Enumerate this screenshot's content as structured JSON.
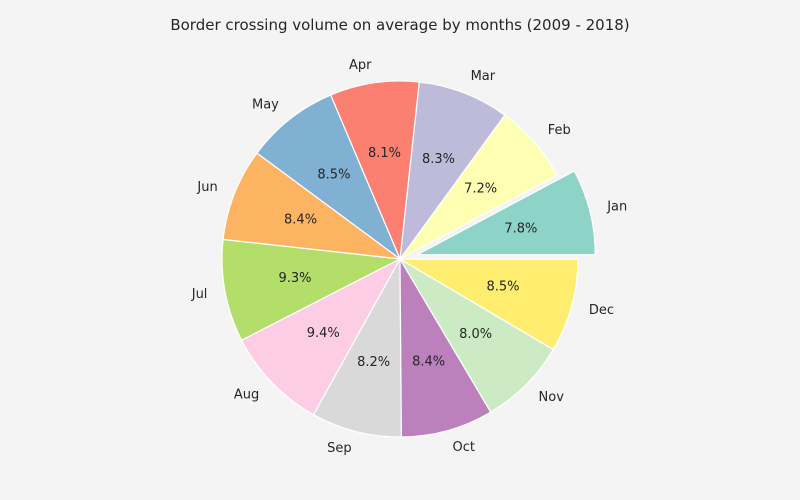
{
  "chart_data": {
    "type": "pie",
    "title": "Border crossing volume on average by months (2009 - 2018)",
    "categories": [
      "Jan",
      "Feb",
      "Mar",
      "Apr",
      "May",
      "Jun",
      "Jul",
      "Aug",
      "Sep",
      "Oct",
      "Nov",
      "Dec"
    ],
    "values": [
      7.8,
      7.2,
      8.3,
      8.1,
      8.5,
      8.4,
      9.3,
      9.4,
      8.2,
      8.4,
      8.0,
      8.5
    ],
    "value_labels": [
      "7.8%",
      "7.2%",
      "8.3%",
      "8.1%",
      "8.5%",
      "8.4%",
      "9.3%",
      "9.4%",
      "8.2%",
      "8.4%",
      "8.0%",
      "8.5%"
    ],
    "colors": [
      "#8dd3c7",
      "#ffffb3",
      "#bebada",
      "#fb8072",
      "#80b1d3",
      "#fdb462",
      "#b3de69",
      "#fccde5",
      "#d9d9d9",
      "#bc80bd",
      "#ccebc5",
      "#ffed6f"
    ],
    "explode": [
      0.1,
      0,
      0,
      0,
      0,
      0,
      0,
      0,
      0,
      0,
      0,
      0
    ],
    "start_angle_deg": 0,
    "direction": "counterclockwise",
    "background": "#f4f4f4"
  }
}
